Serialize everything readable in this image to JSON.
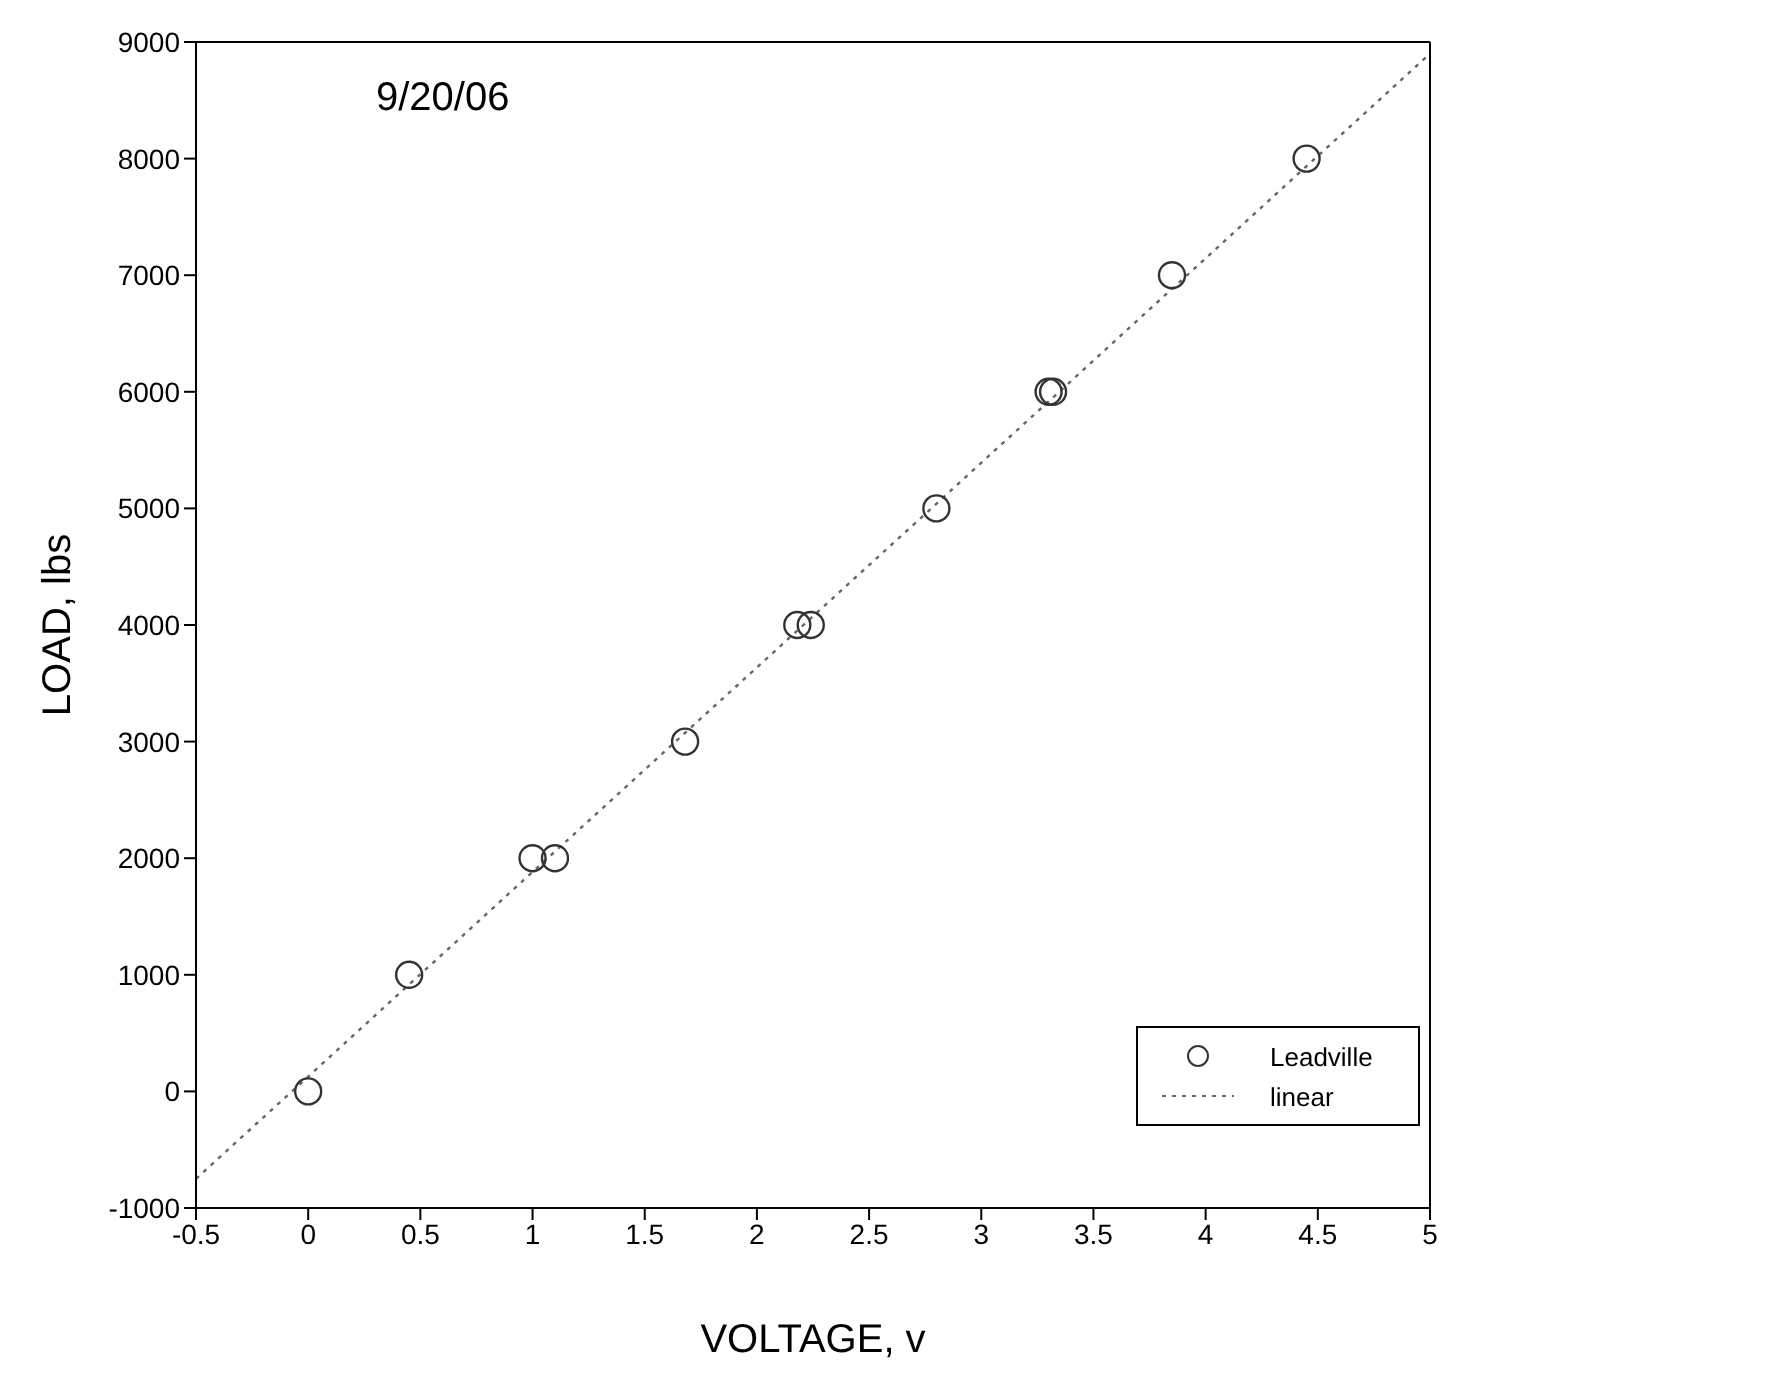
{
  "chart_data": {
    "type": "scatter",
    "xlabel": "VOLTAGE, v",
    "ylabel": "LOAD, lbs",
    "annotations": [
      "9/20/06"
    ],
    "xlim": [
      -0.5,
      5
    ],
    "xticks": [
      -0.5,
      0,
      0.5,
      1,
      1.5,
      2,
      2.5,
      3,
      3.5,
      4,
      4.5,
      5
    ],
    "ylim": [
      -1000,
      9000
    ],
    "yticks": [
      -1000,
      0,
      1000,
      2000,
      3000,
      4000,
      5000,
      6000,
      7000,
      8000,
      9000
    ],
    "grid": false,
    "legend": "bottom right",
    "marker": "circle",
    "series": [
      {
        "name": "Leadville",
        "color": "#333333",
        "x": [
          0,
          0.45,
          1.0,
          1.1,
          1.68,
          2.18,
          2.24,
          2.8,
          3.3,
          3.32,
          3.85,
          4.45
        ],
        "values": [
          0,
          1000,
          2000,
          2000,
          3000,
          4000,
          4000,
          5000,
          6000,
          6000,
          7000,
          8000
        ]
      },
      {
        "name": "linear",
        "type": "line",
        "color": "#666666",
        "line_style": "dotted",
        "marker": "none",
        "x": [
          -0.5,
          5
        ],
        "values": [
          -750,
          8900
        ]
      }
    ]
  }
}
